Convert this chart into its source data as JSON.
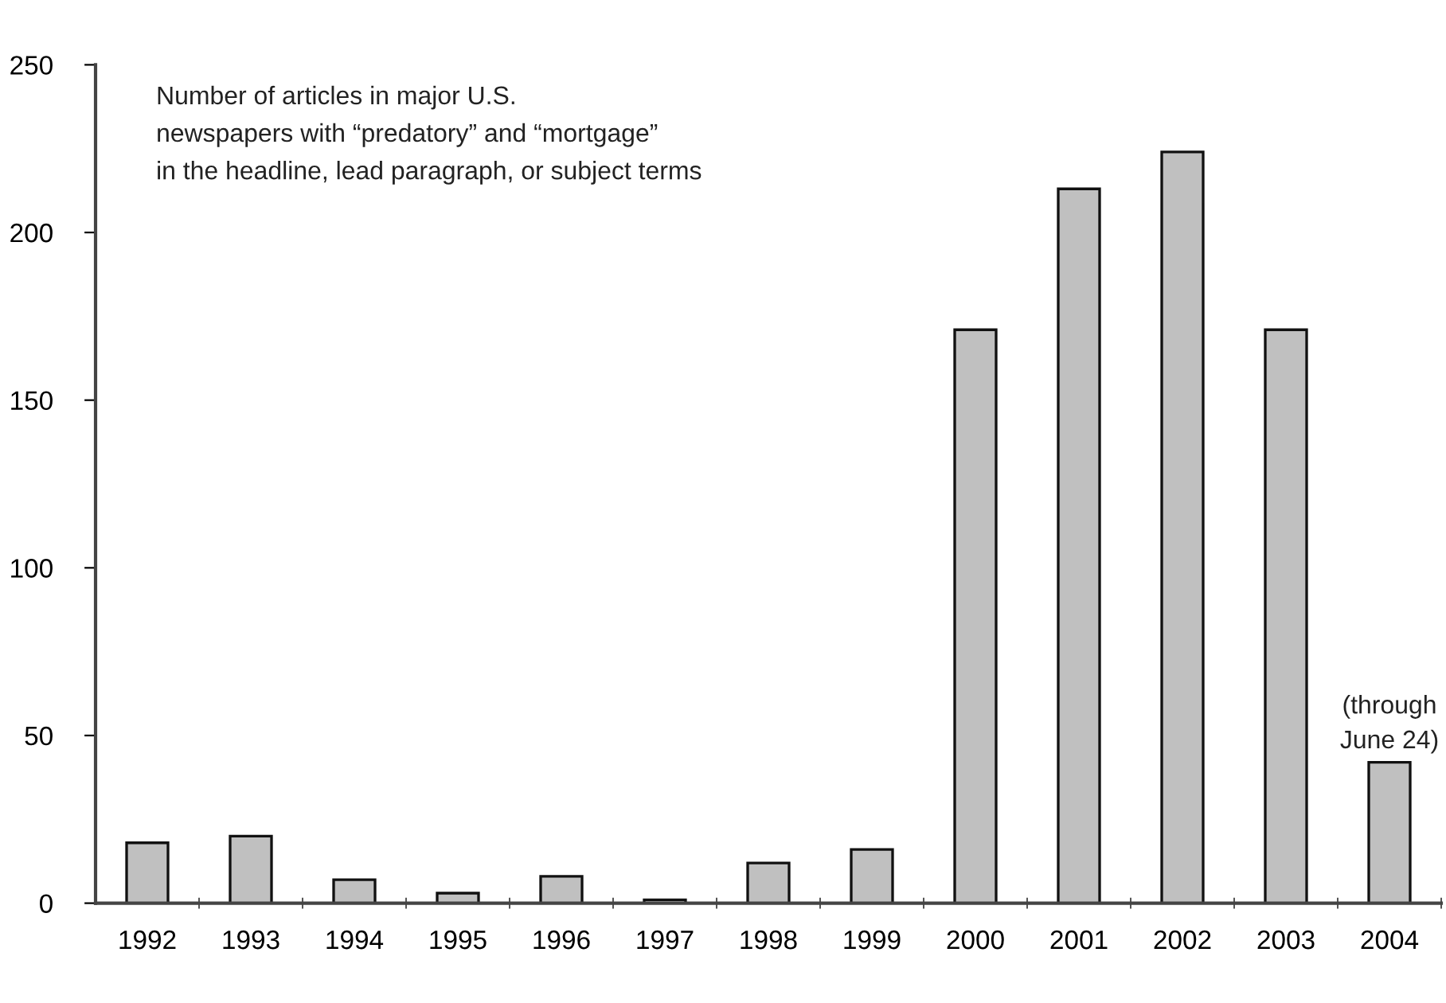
{
  "chart_data": {
    "type": "bar",
    "title": "Number of articles in major U.S.\nnewspapers with “predatory” and “mortgage”\nin the headline, lead paragraph, or subject terms",
    "categories": [
      "1992",
      "1993",
      "1994",
      "1995",
      "1996",
      "1997",
      "1998",
      "1999",
      "2000",
      "2001",
      "2002",
      "2003",
      "2004"
    ],
    "values": [
      18,
      20,
      7,
      3,
      8,
      1,
      12,
      16,
      171,
      213,
      224,
      171,
      42
    ],
    "color": "#c0c0c0",
    "ylim": [
      0,
      250
    ],
    "yticks": [
      0,
      50,
      100,
      150,
      200,
      250
    ],
    "annotations": [
      {
        "text": "(through\nJune 24)",
        "x": "2004",
        "y": 42
      }
    ],
    "grid": false,
    "legend": false
  }
}
